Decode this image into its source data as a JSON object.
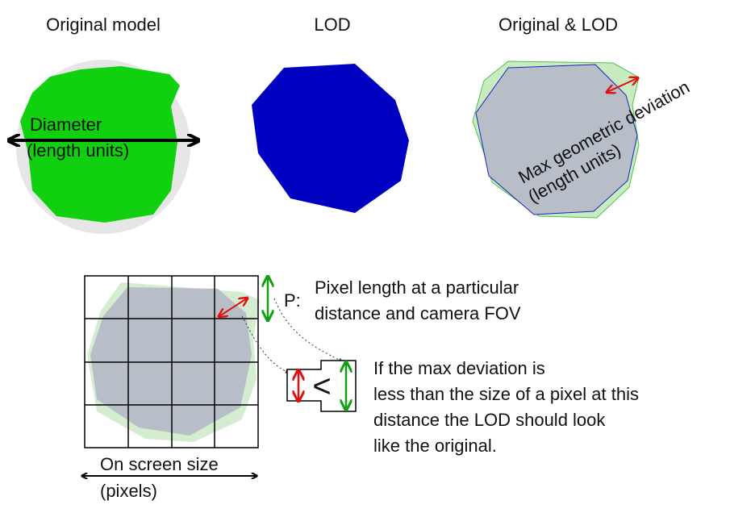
{
  "panels": [
    {
      "title": "Original model",
      "label": [
        "Diameter",
        "(length units)"
      ]
    },
    {
      "title": "LOD"
    },
    {
      "title": "Original & LOD",
      "label": [
        "Max geometric deviation",
        "(length units)"
      ]
    }
  ],
  "pixel_diagram": {
    "pixel_label": "P:",
    "pixel_description": [
      "Pixel length at a particular",
      "distance and camera FOV"
    ],
    "comparison": "<",
    "explanation": [
      "If the max deviation is",
      "less than the size of a pixel at this",
      "distance the LOD should look",
      "like the original."
    ],
    "size_label": [
      "On screen size",
      "(pixels)"
    ]
  }
}
